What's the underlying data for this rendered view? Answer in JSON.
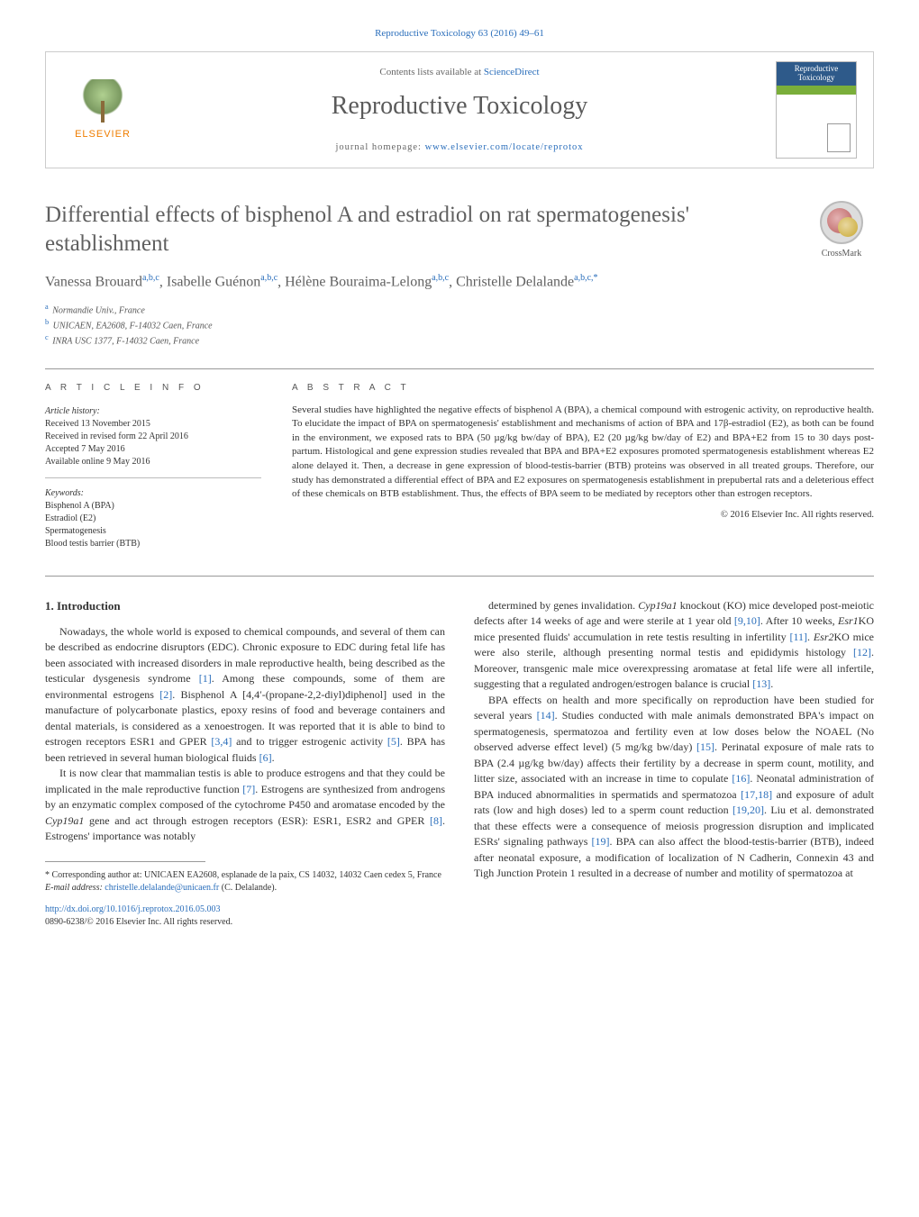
{
  "colors": {
    "link": "#2a6ebb",
    "text": "#333333",
    "muted": "#606060",
    "border": "#999999",
    "elsevier_orange": "#ef7d00",
    "banner_blue": "#2e5a8a",
    "banner_green": "#7aae3a"
  },
  "typography": {
    "body_fontsize_pt": 10,
    "title_fontsize_pt": 19,
    "author_fontsize_pt": 12,
    "banner_title_fontsize_pt": 21
  },
  "header": {
    "citation": "Reproductive Toxicology 63 (2016) 49–61"
  },
  "banner": {
    "publisher": "ELSEVIER",
    "contents_line_prefix": "Contents lists available at ",
    "contents_link": "ScienceDirect",
    "journal_title": "Reproductive Toxicology",
    "homepage_label": "journal homepage: ",
    "homepage_url": "www.elsevier.com/locate/reprotox",
    "cover_title": "Reproductive Toxicology"
  },
  "crossmark": {
    "label": "CrossMark"
  },
  "article": {
    "title": "Differential effects of bisphenol A and estradiol on rat spermatogenesis' establishment",
    "authors_html": "Vanessa Brouard<sup>a,b,c</sup>, Isabelle Guénon<sup>a,b,c</sup>, Hélène Bouraima-Lelong<sup>a,b,c</sup>, Christelle Delalande<sup>a,b,c,*</sup>",
    "affiliations": [
      {
        "mark": "a",
        "text": "Normandie Univ., France"
      },
      {
        "mark": "b",
        "text": "UNICAEN, EA2608, F-14032 Caen, France"
      },
      {
        "mark": "c",
        "text": "INRA USC 1377, F-14032 Caen, France"
      }
    ]
  },
  "info": {
    "heading": "a r t i c l e    i n f o",
    "history_label": "Article history:",
    "history": [
      "Received 13 November 2015",
      "Received in revised form 22 April 2016",
      "Accepted 7 May 2016",
      "Available online 9 May 2016"
    ],
    "keywords_label": "Keywords:",
    "keywords": [
      "Bisphenol A (BPA)",
      "Estradiol (E2)",
      "Spermatogenesis",
      "Blood testis barrier (BTB)"
    ]
  },
  "abstract": {
    "heading": "a b s t r a c t",
    "text": "Several studies have highlighted the negative effects of bisphenol A (BPA), a chemical compound with estrogenic activity, on reproductive health. To elucidate the impact of BPA on spermatogenesis' establishment and mechanisms of action of BPA and 17β-estradiol (E2), as both can be found in the environment, we exposed rats to BPA (50 µg/kg bw/day of BPA), E2 (20 µg/kg bw/day of E2) and BPA+E2 from 15 to 30 days post-partum. Histological and gene expression studies revealed that BPA and BPA+E2 exposures promoted spermatogenesis establishment whereas E2 alone delayed it. Then, a decrease in gene expression of blood-testis-barrier (BTB) proteins was observed in all treated groups. Therefore, our study has demonstrated a differential effect of BPA and E2 exposures on spermatogenesis establishment in prepubertal rats and a deleterious effect of these chemicals on BTB establishment. Thus, the effects of BPA seem to be mediated by receptors other than estrogen receptors.",
    "copyright": "© 2016 Elsevier Inc. All rights reserved."
  },
  "body": {
    "section_number": "1.",
    "section_title": "Introduction",
    "col1_paras": [
      "Nowadays, the whole world is exposed to chemical compounds, and several of them can be described as endocrine disruptors (EDC). Chronic exposure to EDC during fetal life has been associated with increased disorders in male reproductive health, being described as the testicular dysgenesis syndrome <span class=\"ref\">[1]</span>. Among these compounds, some of them are environmental estrogens <span class=\"ref\">[2]</span>. Bisphenol A [4,4′-(propane-2,2-diyl)diphenol] used in the manufacture of polycarbonate plastics, epoxy resins of food and beverage containers and dental materials, is considered as a xenoestrogen. It was reported that it is able to bind to estrogen receptors ESR1 and GPER <span class=\"ref\">[3,4]</span> and to trigger estrogenic activity <span class=\"ref\">[5]</span>. BPA has been retrieved in several human biological fluids <span class=\"ref\">[6]</span>.",
      "It is now clear that mammalian testis is able to produce estrogens and that they could be implicated in the male reproductive function <span class=\"ref\">[7]</span>. Estrogens are synthesized from androgens by an enzymatic complex composed of the cytochrome P450 and aromatase encoded by the <i>Cyp19a1</i> gene and act through estrogen receptors (ESR): ESR1, ESR2 and GPER <span class=\"ref\">[8]</span>. Estrogens' importance was notably"
    ],
    "col2_paras": [
      "determined by genes invalidation. <i>Cyp19a1</i> knockout (KO) mice developed post-meiotic defects after 14 weeks of age and were sterile at 1 year old <span class=\"ref\">[9,10]</span>. After 10 weeks, <i>Esr1</i>KO mice presented fluids' accumulation in rete testis resulting in infertility <span class=\"ref\">[11]</span>. <i>Esr2</i>KO mice were also sterile, although presenting normal testis and epididymis histology <span class=\"ref\">[12]</span>. Moreover, transgenic male mice overexpressing aromatase at fetal life were all infertile, suggesting that a regulated androgen/estrogen balance is crucial <span class=\"ref\">[13]</span>.",
      "BPA effects on health and more specifically on reproduction have been studied for several years <span class=\"ref\">[14]</span>. Studies conducted with male animals demonstrated BPA's impact on spermatogenesis, spermatozoa and fertility even at low doses below the NOAEL (No observed adverse effect level) (5 mg/kg bw/day) <span class=\"ref\">[15]</span>. Perinatal exposure of male rats to BPA (2.4 µg/kg bw/day) affects their fertility by a decrease in sperm count, motility, and litter size, associated with an increase in time to copulate <span class=\"ref\">[16]</span>. Neonatal administration of BPA induced abnormalities in spermatids and spermatozoa <span class=\"ref\">[17,18]</span> and exposure of adult rats (low and high doses) led to a sperm count reduction <span class=\"ref\">[19,20]</span>. Liu et al. demonstrated that these effects were a consequence of meiosis progression disruption and implicated ESRs' signaling pathways <span class=\"ref\">[19]</span>. BPA can also affect the blood-testis-barrier (BTB), indeed after neonatal exposure, a modification of localization of N Cadherin, Connexin 43 and Tigh Junction Protein 1 resulted in a decrease of number and motility of spermatozoa at"
    ]
  },
  "footnotes": {
    "corresponding_prefix": "* Corresponding author at: ",
    "corresponding": "UNICAEN EA2608, esplanade de la paix, CS 14032, 14032 Caen cedex 5, France",
    "email_label": "E-mail address: ",
    "email": "christelle.delalande@unicaen.fr",
    "email_paren": " (C. Delalande)."
  },
  "doi": {
    "url": "http://dx.doi.org/10.1016/j.reprotox.2016.05.003",
    "issn_line": "0890-6238/© 2016 Elsevier Inc. All rights reserved."
  }
}
